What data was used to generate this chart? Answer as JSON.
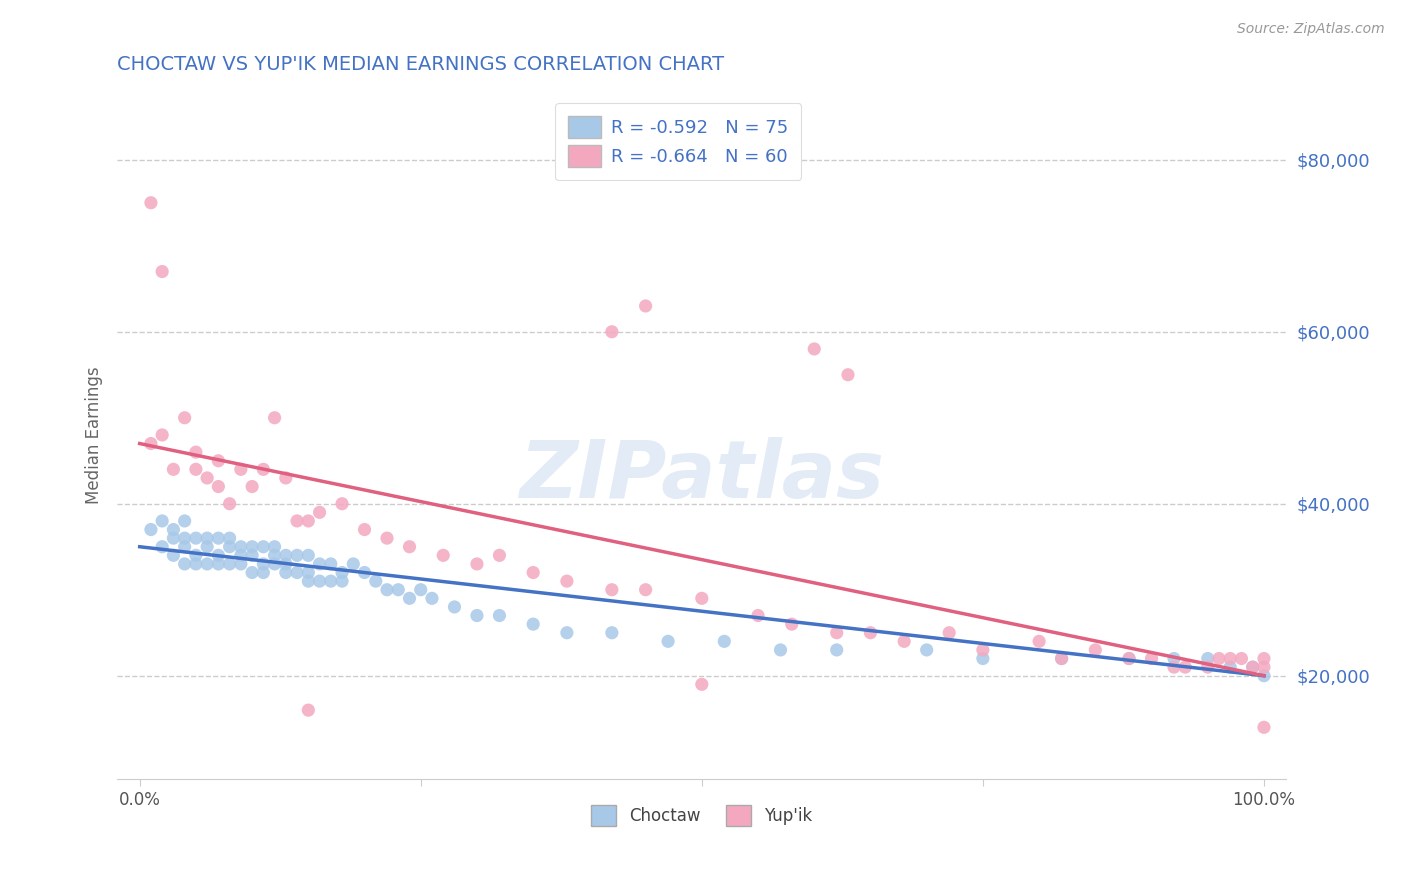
{
  "title": "CHOCTAW VS YUP'IK MEDIAN EARNINGS CORRELATION CHART",
  "source": "Source: ZipAtlas.com",
  "ylabel": "Median Earnings",
  "y_ticks": [
    20000,
    40000,
    60000,
    80000
  ],
  "y_tick_labels": [
    "$20,000",
    "$40,000",
    "$60,000",
    "$80,000"
  ],
  "ylim": [
    8000,
    88000
  ],
  "xlim": [
    -0.02,
    1.02
  ],
  "choctaw_color": "#a8c8e8",
  "choctaw_line_color": "#4472c4",
  "yupik_color": "#f4a8c0",
  "yupik_line_color": "#e06080",
  "choctaw_R": -0.592,
  "choctaw_N": 75,
  "yupik_R": -0.664,
  "yupik_N": 60,
  "watermark": "ZIPatlas",
  "background_color": "#ffffff",
  "legend_label_choctaw": "Choctaw",
  "legend_label_yupik": "Yup'ik",
  "choctaw_x": [
    0.01,
    0.02,
    0.02,
    0.03,
    0.03,
    0.03,
    0.04,
    0.04,
    0.04,
    0.04,
    0.05,
    0.05,
    0.05,
    0.06,
    0.06,
    0.06,
    0.07,
    0.07,
    0.07,
    0.08,
    0.08,
    0.08,
    0.09,
    0.09,
    0.09,
    0.1,
    0.1,
    0.1,
    0.11,
    0.11,
    0.11,
    0.12,
    0.12,
    0.12,
    0.13,
    0.13,
    0.13,
    0.14,
    0.14,
    0.15,
    0.15,
    0.15,
    0.16,
    0.16,
    0.17,
    0.17,
    0.18,
    0.18,
    0.19,
    0.2,
    0.21,
    0.22,
    0.23,
    0.24,
    0.25,
    0.26,
    0.28,
    0.3,
    0.32,
    0.35,
    0.38,
    0.42,
    0.47,
    0.52,
    0.57,
    0.62,
    0.7,
    0.75,
    0.82,
    0.88,
    0.92,
    0.95,
    0.97,
    0.99,
    1.0
  ],
  "choctaw_y": [
    37000,
    35000,
    38000,
    36000,
    34000,
    37000,
    35000,
    33000,
    36000,
    38000,
    34000,
    36000,
    33000,
    35000,
    33000,
    36000,
    34000,
    36000,
    33000,
    35000,
    33000,
    36000,
    34000,
    33000,
    35000,
    34000,
    32000,
    35000,
    33000,
    35000,
    32000,
    34000,
    33000,
    35000,
    32000,
    34000,
    33000,
    32000,
    34000,
    32000,
    34000,
    31000,
    33000,
    31000,
    33000,
    31000,
    32000,
    31000,
    33000,
    32000,
    31000,
    30000,
    30000,
    29000,
    30000,
    29000,
    28000,
    27000,
    27000,
    26000,
    25000,
    25000,
    24000,
    24000,
    23000,
    23000,
    23000,
    22000,
    22000,
    22000,
    22000,
    22000,
    21000,
    21000,
    20000
  ],
  "yupik_x": [
    0.01,
    0.01,
    0.02,
    0.02,
    0.03,
    0.04,
    0.05,
    0.05,
    0.06,
    0.07,
    0.07,
    0.08,
    0.09,
    0.1,
    0.11,
    0.12,
    0.13,
    0.14,
    0.15,
    0.16,
    0.18,
    0.2,
    0.22,
    0.24,
    0.27,
    0.3,
    0.32,
    0.35,
    0.38,
    0.42,
    0.45,
    0.5,
    0.55,
    0.58,
    0.62,
    0.65,
    0.68,
    0.72,
    0.75,
    0.8,
    0.82,
    0.85,
    0.88,
    0.9,
    0.92,
    0.93,
    0.95,
    0.96,
    0.97,
    0.98,
    0.99,
    1.0,
    1.0,
    1.0,
    0.6,
    0.63,
    0.45,
    0.42,
    0.5,
    0.15
  ],
  "yupik_y": [
    47000,
    75000,
    67000,
    48000,
    44000,
    50000,
    44000,
    46000,
    43000,
    45000,
    42000,
    40000,
    44000,
    42000,
    44000,
    50000,
    43000,
    38000,
    38000,
    39000,
    40000,
    37000,
    36000,
    35000,
    34000,
    33000,
    34000,
    32000,
    31000,
    30000,
    30000,
    29000,
    27000,
    26000,
    25000,
    25000,
    24000,
    25000,
    23000,
    24000,
    22000,
    23000,
    22000,
    22000,
    21000,
    21000,
    21000,
    22000,
    22000,
    22000,
    21000,
    21000,
    22000,
    14000,
    58000,
    55000,
    63000,
    60000,
    19000,
    16000
  ]
}
